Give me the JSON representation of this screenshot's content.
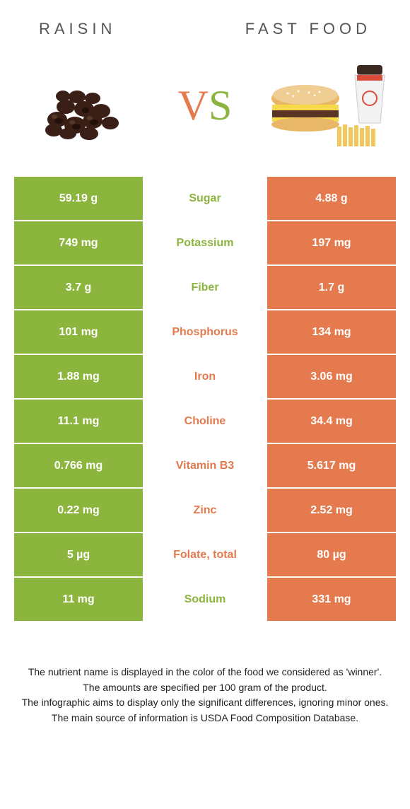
{
  "colors": {
    "green": "#8cb53e",
    "orange": "#e47a4d",
    "vs_v": "#e47a4d",
    "vs_s": "#8cb53e",
    "title_text": "#555555",
    "cell_text": "#ffffff",
    "footer_text": "#222222"
  },
  "header": {
    "left_title": "RAISIN",
    "right_title": "FAST FOOD"
  },
  "vs": {
    "v": "V",
    "s": "S"
  },
  "rows": [
    {
      "left": "59.19 g",
      "label": "Sugar",
      "right": "4.88 g",
      "winner": "left"
    },
    {
      "left": "749 mg",
      "label": "Potassium",
      "right": "197 mg",
      "winner": "left"
    },
    {
      "left": "3.7 g",
      "label": "Fiber",
      "right": "1.7 g",
      "winner": "left"
    },
    {
      "left": "101 mg",
      "label": "Phosphorus",
      "right": "134 mg",
      "winner": "right"
    },
    {
      "left": "1.88 mg",
      "label": "Iron",
      "right": "3.06 mg",
      "winner": "right"
    },
    {
      "left": "11.1 mg",
      "label": "Choline",
      "right": "34.4 mg",
      "winner": "right"
    },
    {
      "left": "0.766 mg",
      "label": "Vitamin B3",
      "right": "5.617 mg",
      "winner": "right"
    },
    {
      "left": "0.22 mg",
      "label": "Zinc",
      "right": "2.52 mg",
      "winner": "right"
    },
    {
      "left": "5 µg",
      "label": "Folate, total",
      "right": "80 µg",
      "winner": "right"
    },
    {
      "left": "11 mg",
      "label": "Sodium",
      "right": "331 mg",
      "winner": "left"
    }
  ],
  "footer": {
    "line1": "The nutrient name is displayed in the color of the food we considered as 'winner'.",
    "line2": "The amounts are specified per 100 gram of the product.",
    "line3": "The infographic aims to display only the significant differences, ignoring minor ones.",
    "line4": "The main source of information is USDA Food Composition Database."
  }
}
